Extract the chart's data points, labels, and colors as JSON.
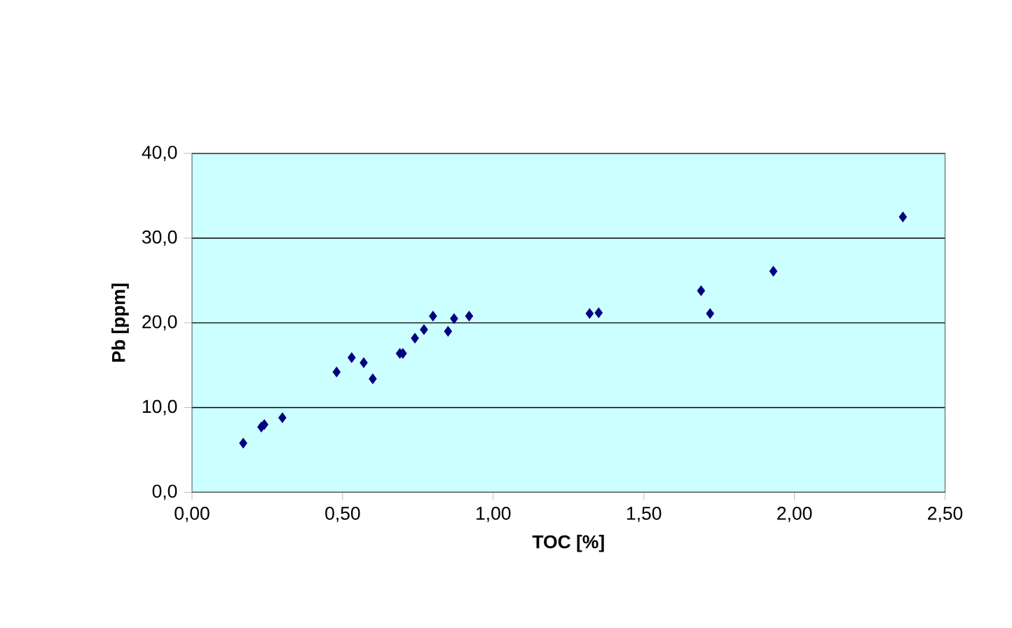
{
  "chart_data": {
    "type": "scatter",
    "xlabel": "TOC [%]",
    "ylabel": "Pb [ppm]",
    "xlim": [
      0,
      2.5
    ],
    "ylim": [
      0,
      40
    ],
    "xticks": [
      {
        "value": 0,
        "label": "0,00"
      },
      {
        "value": 0.5,
        "label": "0,50"
      },
      {
        "value": 1,
        "label": "1,00"
      },
      {
        "value": 1.5,
        "label": "1,50"
      },
      {
        "value": 2,
        "label": "2,00"
      },
      {
        "value": 2.5,
        "label": "2,50"
      }
    ],
    "yticks": [
      {
        "value": 0,
        "label": "0,0"
      },
      {
        "value": 10,
        "label": "10,0"
      },
      {
        "value": 20,
        "label": "20,0"
      },
      {
        "value": 30,
        "label": "30,0"
      },
      {
        "value": 40,
        "label": "40,0"
      }
    ],
    "grid": "y",
    "marker": "diamond",
    "series": [
      {
        "color": "#000080",
        "x": [
          0.17,
          0.23,
          0.24,
          0.3,
          0.48,
          0.53,
          0.57,
          0.6,
          0.69,
          0.7,
          0.74,
          0.77,
          0.8,
          0.85,
          0.87,
          0.92,
          1.32,
          1.35,
          1.69,
          1.72,
          1.93,
          2.36
        ],
        "values": [
          5.8,
          7.7,
          8.0,
          8.8,
          14.2,
          15.9,
          15.3,
          13.4,
          16.4,
          16.4,
          18.2,
          19.2,
          20.8,
          19.0,
          20.5,
          20.8,
          21.1,
          21.2,
          23.8,
          21.1,
          26.1,
          32.5
        ]
      }
    ]
  }
}
